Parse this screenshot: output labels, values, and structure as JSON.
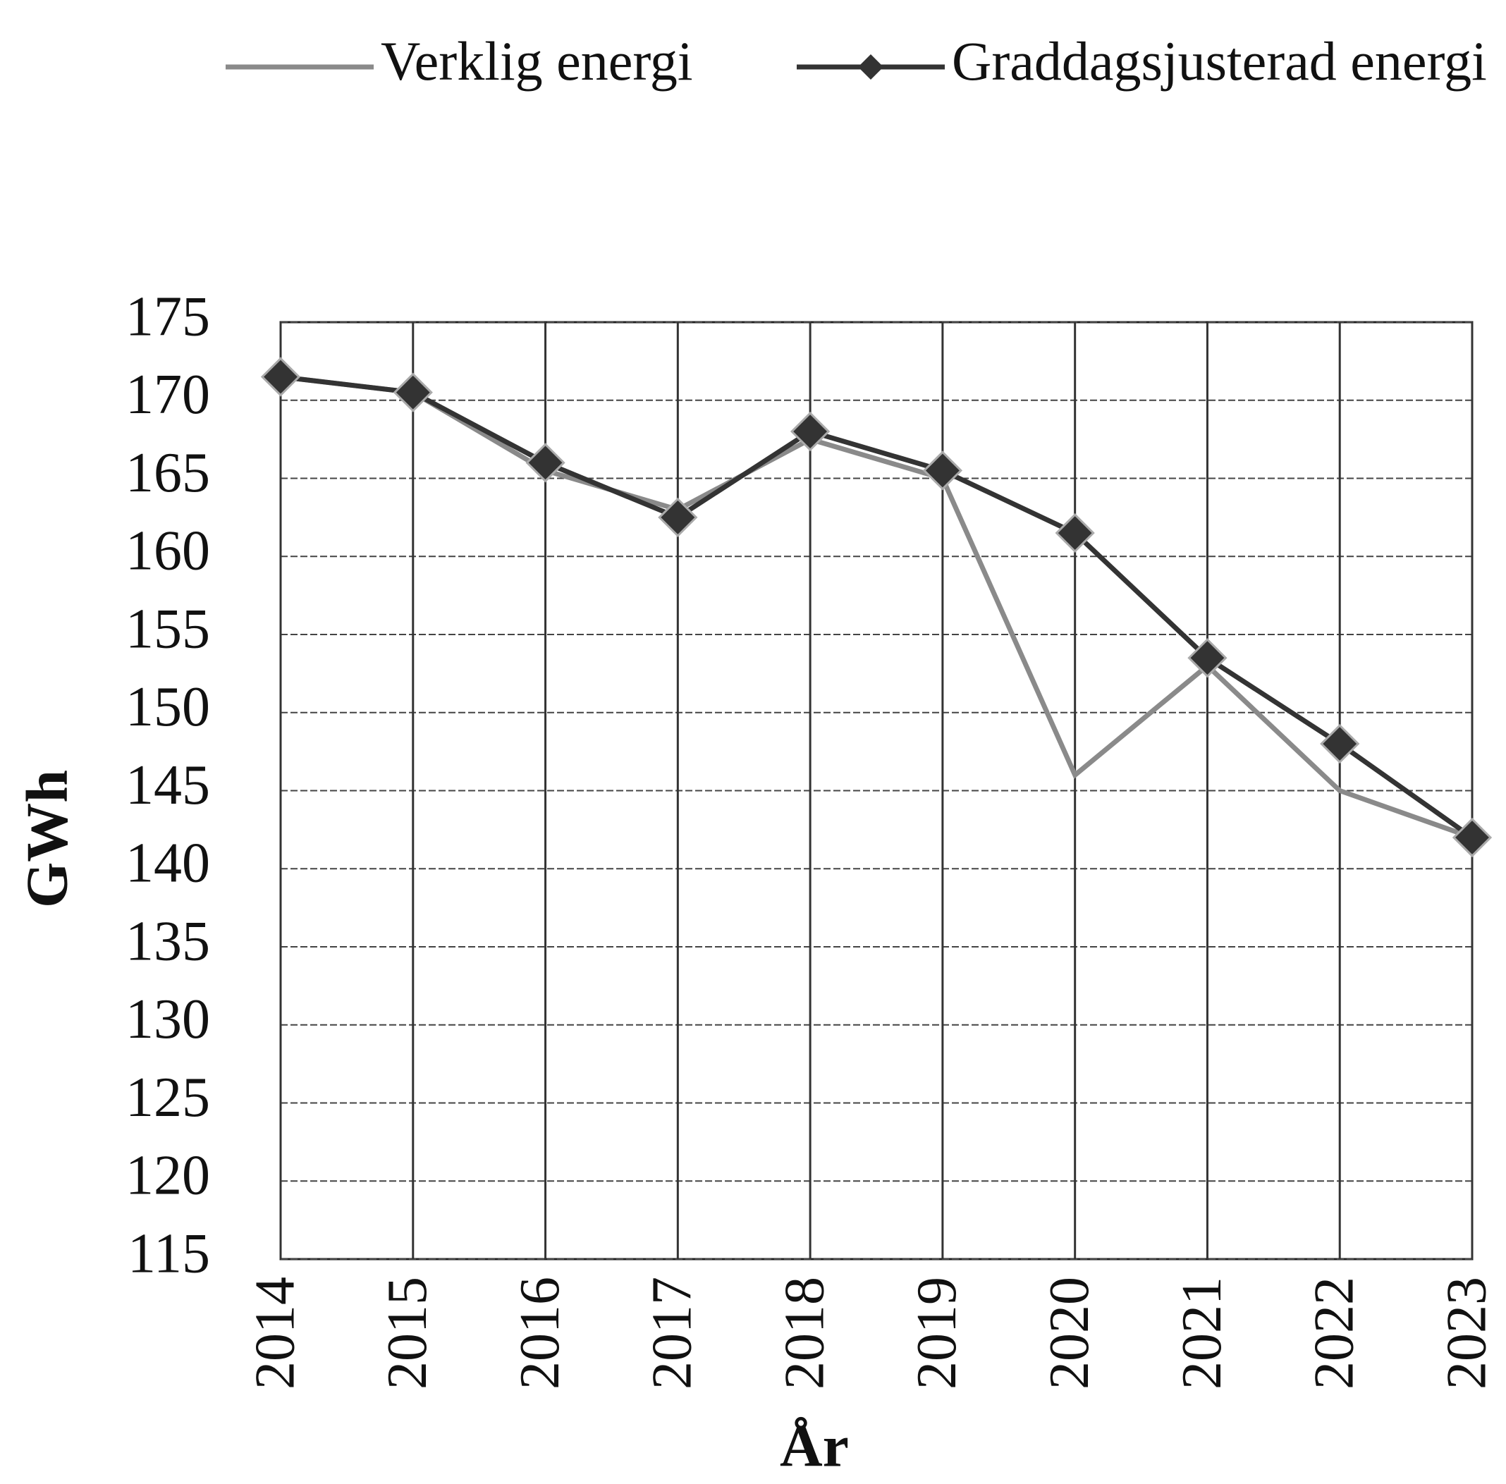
{
  "chart_data": {
    "type": "line",
    "categories": [
      "2014",
      "2015",
      "2016",
      "2017",
      "2018",
      "2019",
      "2020",
      "2021",
      "2022",
      "2023"
    ],
    "series": [
      {
        "name": "Verklig energi",
        "color": "#8a8a8a",
        "values": [
          171.5,
          170.5,
          165.5,
          163,
          167.5,
          165,
          146,
          153,
          145,
          142
        ]
      },
      {
        "name": "Graddagsjusterad energi",
        "color": "#333333",
        "values": [
          171.5,
          170.5,
          166,
          162.5,
          168,
          165.5,
          161.5,
          153.5,
          148,
          142
        ]
      }
    ],
    "ylim": [
      115,
      175
    ],
    "yticks": [
      115,
      120,
      125,
      130,
      135,
      140,
      145,
      150,
      155,
      160,
      165,
      170,
      175
    ],
    "x_label": "År",
    "y_label": "GWh",
    "grid": true,
    "legend": "top"
  }
}
